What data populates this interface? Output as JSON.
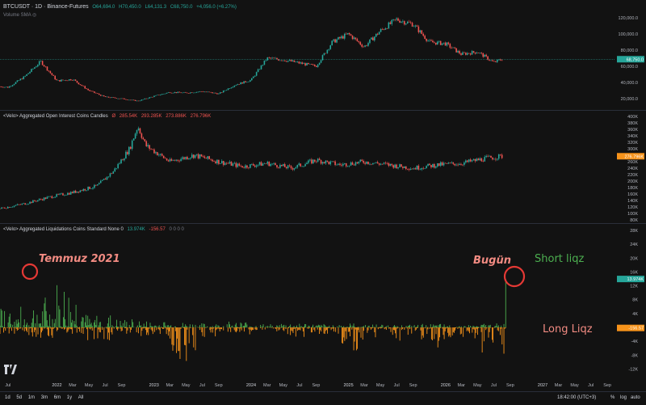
{
  "header": {
    "symbol": "BTCUSDT · 1D · Binance-Futures",
    "ohlc": {
      "o": "O64,694.0",
      "h": "H70,450.0",
      "l": "L64,131.3",
      "c": "C68,750.0",
      "chg": "+4,056.0 (+6.27%)"
    },
    "volume_label": "Volume SMA"
  },
  "oi_legend": {
    "title": "<Velo> Aggregated Open Interest Coins Candles",
    "values": [
      "Ø",
      "285.54K",
      "293.285K",
      "273.886K",
      "276.796K"
    ]
  },
  "liq_legend": {
    "title": "<Velo> Aggregated Liquidations Coins Standard None 0",
    "v1": "13.974K",
    "v2": "-156.57",
    "zeros": "0 0 0 0"
  },
  "annotations": {
    "left": "Temmuz 2021",
    "right": "Bugün",
    "short": "Short liqz",
    "long": "Long Liqz"
  },
  "bottom_bar": {
    "timeframes": [
      "1d",
      "5d",
      "1m",
      "3m",
      "6m",
      "1y",
      "All"
    ],
    "clock": "18:42:00 (UTC+3)",
    "percent": "%",
    "log": "log",
    "auto": "auto"
  },
  "colors": {
    "bg": "#121212",
    "up": "#26a69a",
    "down": "#ef5350",
    "price_badge": "#26a69a",
    "oi_badge": "#f7931a",
    "short": "#4caf50",
    "long": "#f7931a",
    "circle": "#e53935"
  },
  "chart_data": [
    {
      "type": "line",
      "title": "BTCUSDT · 1D · Binance-Futures",
      "x": [
        "2021-06",
        "2021-07",
        "2021-09",
        "2021-11",
        "2022-01",
        "2022-03",
        "2022-05",
        "2022-07",
        "2022-09",
        "2022-11",
        "2023-01",
        "2023-03",
        "2023-05",
        "2023-07",
        "2023-09",
        "2023-11",
        "2024-01",
        "2024-03",
        "2024-05",
        "2024-07",
        "2024-09",
        "2024-11",
        "2025-01",
        "2025-03",
        "2025-05",
        "2025-07",
        "2025-09",
        "2025-11",
        "2026-01",
        "2026-03",
        "2026-05",
        "2026-07",
        "2026-08"
      ],
      "y": [
        35000,
        34000,
        47000,
        66000,
        42000,
        44000,
        30000,
        22000,
        20000,
        17000,
        23000,
        28000,
        27000,
        29000,
        26000,
        37000,
        43000,
        70000,
        68000,
        64000,
        60000,
        90000,
        100000,
        84000,
        104000,
        118000,
        112000,
        90000,
        88000,
        75000,
        78000,
        64700,
        68750
      ],
      "ylim": [
        10000,
        130000
      ],
      "yticks": [
        "20,000.0",
        "40,000.0",
        "60,000.0",
        "80,000.0",
        "100,000.0",
        "120,000.0"
      ],
      "last_value": "68,750.0",
      "xticks": [
        "Jul",
        "2022",
        "Mar",
        "May",
        "Jul",
        "Sep",
        "2023",
        "Mar",
        "May",
        "Jul",
        "Sep",
        "2024",
        "Mar",
        "May",
        "Jul",
        "Sep",
        "2025",
        "Mar",
        "May",
        "Jul",
        "Sep",
        "2026",
        "Mar",
        "May",
        "Jul",
        "Sep",
        "2027",
        "Mar",
        "May",
        "Jul",
        "Sep"
      ]
    },
    {
      "type": "line",
      "title": "<Velo> Aggregated Open Interest Coins Candles",
      "x": [
        "2021-06",
        "2021-09",
        "2021-12",
        "2022-03",
        "2022-06",
        "2022-08",
        "2022-10",
        "2022-11",
        "2022-12",
        "2023-03",
        "2023-06",
        "2023-09",
        "2023-12",
        "2024-03",
        "2024-06",
        "2024-09",
        "2024-12",
        "2025-03",
        "2025-06",
        "2025-09",
        "2025-12",
        "2026-03",
        "2026-06",
        "2026-08"
      ],
      "y": [
        115,
        130,
        150,
        165,
        185,
        230,
        300,
        370,
        310,
        260,
        280,
        260,
        245,
        255,
        240,
        265,
        250,
        260,
        250,
        240,
        250,
        255,
        270,
        276.8
      ],
      "ylim": [
        80,
        410
      ],
      "unit": "K",
      "yticks": [
        "80K",
        "100K",
        "120K",
        "140K",
        "160K",
        "180K",
        "200K",
        "220K",
        "240K",
        "260K",
        "280K",
        "300K",
        "320K",
        "340K",
        "360K",
        "380K",
        "400K"
      ],
      "last_value": "276.796K"
    },
    {
      "type": "bar",
      "title": "<Velo> Aggregated Liquidations Coins Standard None 0",
      "series": [
        {
          "values_k": [
            6,
            9,
            14,
            4,
            2.5,
            2,
            1.5,
            1.2,
            2,
            1,
            1.5,
            1,
            1.2,
            1,
            0.8,
            1,
            0.8,
            1.2,
            13.974
          ]
        },
        {
          "values_k": [
            -2,
            -3,
            -2,
            -4,
            -2,
            -3,
            -10,
            -3,
            -2,
            -2,
            -3,
            -2,
            -9,
            -3,
            -4,
            -7,
            -4,
            -8,
            -0.157
          ]
        }
      ],
      "ylim": [
        -14,
        28
      ],
      "unit": "K",
      "yticks": [
        "-12K",
        "-8K",
        "-4K",
        "0",
        "4K",
        "8K",
        "12K",
        "16K",
        "20K",
        "24K",
        "28K"
      ],
      "last_values": [
        "13.974K",
        "-156.57"
      ]
    }
  ]
}
